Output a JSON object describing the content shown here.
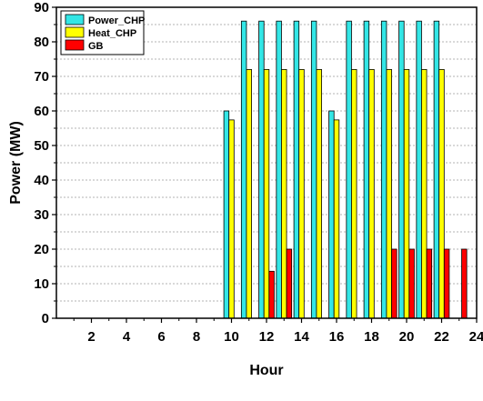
{
  "chart_data": {
    "type": "bar",
    "xlabel": "Hour",
    "ylabel": "Power (MW)",
    "xlim": [
      0,
      24
    ],
    "ylim": [
      0,
      90
    ],
    "xticks": [
      2,
      4,
      6,
      8,
      10,
      12,
      14,
      16,
      18,
      20,
      22,
      24
    ],
    "yticks": [
      0,
      10,
      20,
      30,
      40,
      50,
      60,
      70,
      80,
      90
    ],
    "grid": "horizontal-dashed",
    "legend_position": "top-left",
    "x": [
      1,
      2,
      3,
      4,
      5,
      6,
      7,
      8,
      9,
      10,
      11,
      12,
      13,
      14,
      15,
      16,
      17,
      18,
      19,
      20,
      21,
      22,
      23,
      24
    ],
    "series": [
      {
        "name": "Power_CHP",
        "color": "#33e6e6",
        "values": [
          0,
          0,
          0,
          0,
          0,
          0,
          0,
          0,
          0,
          60,
          86,
          86,
          86,
          86,
          86,
          60,
          86,
          86,
          86,
          86,
          86,
          86,
          0,
          0
        ]
      },
      {
        "name": "Heat_CHP",
        "color": "#ffff00",
        "values": [
          0,
          0,
          0,
          0,
          0,
          0,
          0,
          0,
          0,
          57.4,
          72,
          72,
          72,
          72,
          72,
          57.4,
          72,
          72,
          72,
          72,
          72,
          72,
          0,
          0
        ]
      },
      {
        "name": "GB",
        "color": "#ff0000",
        "values": [
          0,
          0,
          0,
          0,
          0,
          0,
          0,
          0,
          0,
          0,
          0,
          13.6,
          20,
          0,
          0,
          0,
          0,
          0,
          20,
          20,
          20,
          20,
          20,
          0
        ]
      }
    ]
  }
}
